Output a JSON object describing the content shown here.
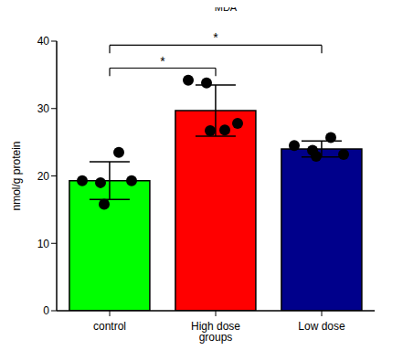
{
  "chart_data": {
    "type": "bar",
    "title": "MDA",
    "y_label": "nmol/g protein",
    "categories": [
      "control",
      "High dose groups",
      "Low dose"
    ],
    "values": [
      19.3,
      29.7,
      24.0
    ],
    "errors": [
      2.8,
      3.8,
      1.2
    ],
    "points": [
      [
        19.3,
        19.0,
        19.3,
        15.8,
        23.5
      ],
      [
        34.2,
        33.8,
        27.8,
        26.7,
        26.8
      ],
      [
        24.5,
        23.8,
        23.2,
        22.9,
        25.7
      ]
    ],
    "colors": [
      "#00ff00",
      "#ff0000",
      "#00008b"
    ],
    "ylim": [
      0,
      40
    ],
    "yticks": [
      0,
      10,
      20,
      30,
      40
    ],
    "grid": false,
    "annotations": [
      {
        "from": "control",
        "to": "High dose groups",
        "label": "*"
      },
      {
        "from": "control",
        "to": "Low dose",
        "label": "*"
      }
    ]
  }
}
